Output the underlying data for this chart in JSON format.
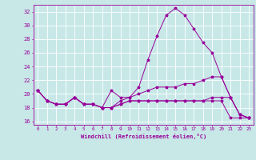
{
  "xlabel": "Windchill (Refroidissement éolien,°C)",
  "xlim": [
    -0.5,
    23.5
  ],
  "ylim": [
    15.5,
    33.0
  ],
  "yticks": [
    16,
    18,
    20,
    22,
    24,
    26,
    28,
    30,
    32
  ],
  "xticks": [
    0,
    1,
    2,
    3,
    4,
    5,
    6,
    7,
    8,
    9,
    10,
    11,
    12,
    13,
    14,
    15,
    16,
    17,
    18,
    19,
    20,
    21,
    22,
    23
  ],
  "bg_color": "#c8e8e8",
  "grid_color": "#aad4d4",
  "line_color": "#990099",
  "lines": [
    [
      20.5,
      19.0,
      18.5,
      18.5,
      19.5,
      18.5,
      18.5,
      18.0,
      18.0,
      18.5,
      19.0,
      19.0,
      19.0,
      19.0,
      19.0,
      19.0,
      19.0,
      19.0,
      19.0,
      19.0,
      19.0,
      16.5,
      16.5,
      16.5
    ],
    [
      20.5,
      19.0,
      18.5,
      18.5,
      19.5,
      18.5,
      18.5,
      18.0,
      20.5,
      19.5,
      19.5,
      21.0,
      25.0,
      28.5,
      31.5,
      32.5,
      31.5,
      29.5,
      27.5,
      26.0,
      22.5,
      19.5,
      17.0,
      16.5
    ],
    [
      20.5,
      19.0,
      18.5,
      18.5,
      19.5,
      18.5,
      18.5,
      18.0,
      18.0,
      19.0,
      19.5,
      20.0,
      20.5,
      21.0,
      21.0,
      21.0,
      21.5,
      21.5,
      22.0,
      22.5,
      22.5,
      19.5,
      17.0,
      16.5
    ],
    [
      20.5,
      19.0,
      18.5,
      18.5,
      19.5,
      18.5,
      18.5,
      18.0,
      18.0,
      18.5,
      19.0,
      19.0,
      19.0,
      19.0,
      19.0,
      19.0,
      19.0,
      19.0,
      19.0,
      19.5,
      19.5,
      19.5,
      17.0,
      16.5
    ]
  ]
}
